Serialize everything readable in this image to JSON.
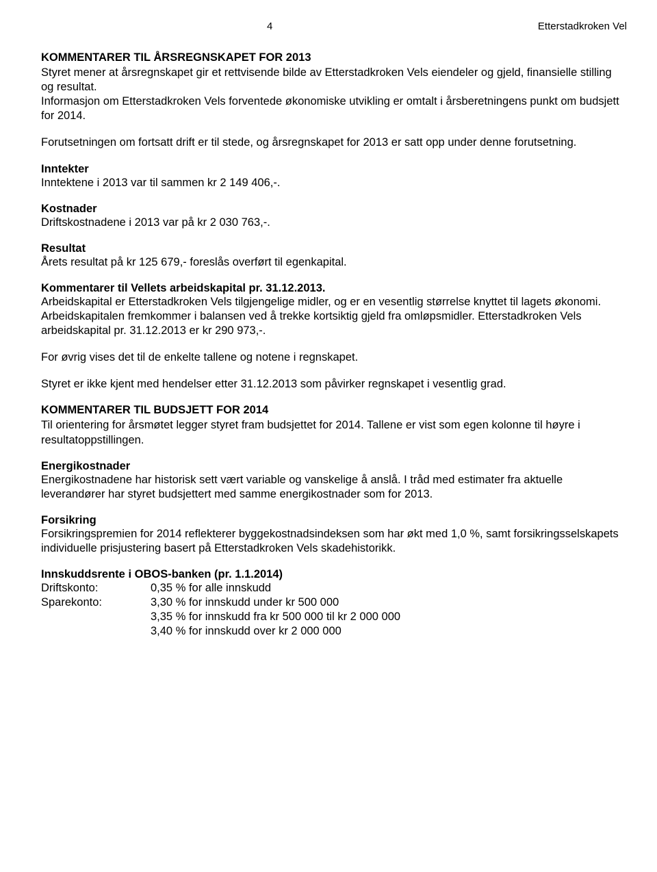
{
  "header": {
    "page_number": "4",
    "org_name": "Etterstadkroken Vel"
  },
  "title_main": "KOMMENTARER TIL ÅRSREGNSKAPET FOR 2013",
  "intro_p1": "Styret mener at årsregnskapet gir et rettvisende bilde av Etterstadkroken Vels eiendeler og gjeld, finansielle stilling og resultat.",
  "intro_p2": "Informasjon om Etterstadkroken Vels forventede økonomiske utvikling er omtalt i årsberetningens punkt om budsjett for 2014.",
  "intro_p3": "Forutsetningen om fortsatt drift er til stede, og årsregnskapet for 2013 er satt opp under denne forutsetning.",
  "inntekter": {
    "heading": "Inntekter",
    "text": "Inntektene i 2013 var til sammen kr 2 149 406,-."
  },
  "kostnader": {
    "heading": "Kostnader",
    "text": "Driftskostnadene i 2013 var på kr 2 030 763,-."
  },
  "resultat": {
    "heading": "Resultat",
    "text": "Årets resultat på kr 125 679,- foreslås overført til egenkapital."
  },
  "kommentarer_arbeidskapital": {
    "heading": "Kommentarer til Vellets arbeidskapital pr. 31.12.2013.",
    "text": "Arbeidskapital er Etterstadkroken Vels tilgjengelige midler, og er en vesentlig størrelse knyttet til lagets økonomi. Arbeidskapitalen fremkommer i balansen ved å trekke kortsiktig gjeld fra omløpsmidler. Etterstadkroken Vels arbeidskapital pr. 31.12.2013 er kr 290 973,-."
  },
  "for_ovrig": "For øvrig vises det til de enkelte tallene og notene i regnskapet.",
  "styret_ikke_kjent": "Styret er ikke kjent med hendelser etter 31.12.2013 som påvirker regnskapet i vesentlig grad.",
  "budsjett2014": {
    "heading": "KOMMENTARER TIL BUDSJETT FOR 2014",
    "text": "Til orientering for årsmøtet legger styret fram budsjettet for 2014. Tallene er vist som egen kolonne til høyre i resultatoppstillingen."
  },
  "energi": {
    "heading": "Energikostnader",
    "text": "Energikostnadene har historisk sett vært variable og vanskelige å anslå. I tråd med estimater fra aktuelle leverandører har styret budsjettert med samme energikostnader som for 2013."
  },
  "forsikring": {
    "heading": "Forsikring",
    "text": "Forsikringspremien for 2014 reflekterer byggekostnadsindeksen som har økt med 1,0 %, samt forsikringsselskapets individuelle prisjustering basert på Etterstadkroken Vels skadehistorikk."
  },
  "innskudd": {
    "heading": "Innskuddsrente i OBOS-banken (pr. 1.1.2014)",
    "rows": [
      {
        "label": "Driftskonto:",
        "value": "0,35 % for alle innskudd"
      },
      {
        "label": "Sparekonto:",
        "value": "3,30 % for innskudd under kr 500 000"
      },
      {
        "label": "",
        "value": "3,35 % for innskudd fra kr 500 000 til kr 2 000 000"
      },
      {
        "label": "",
        "value": "3,40 % for innskudd over kr 2 000 000"
      }
    ]
  }
}
